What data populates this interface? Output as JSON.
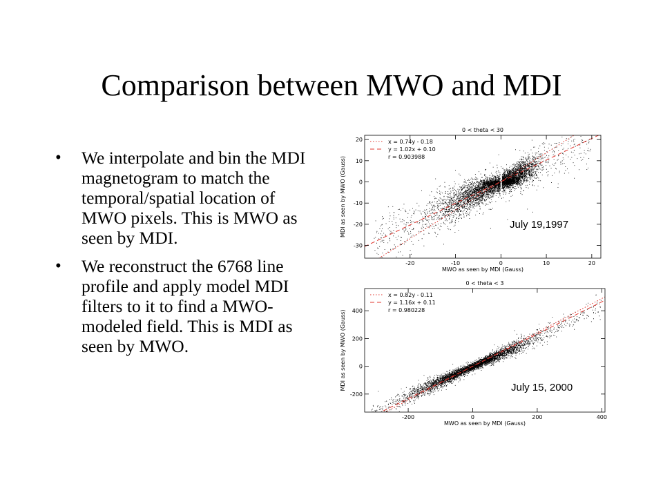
{
  "slide": {
    "title": "Comparison between MWO and MDI",
    "bullets": [
      {
        "bullet": "•",
        "text": "We interpolate and bin the MDI magnetogram to match the temporal/spatial location of MWO pixels. This is MWO as seen by MDI."
      },
      {
        "bullet": "•",
        "text": "We reconstruct the 6768 line profile and apply model MDI filters to it to find a MWO-modeled field. This is MDI as seen by MWO."
      }
    ]
  },
  "chart_data": [
    {
      "type": "scatter",
      "title": "0 < theta < 30",
      "xlabel": "MWO as seen by MDI (Gauss)",
      "ylabel": "MDI as seen by MWO (Gauss)",
      "xlim": [
        -30,
        22
      ],
      "ylim": [
        -36,
        22
      ],
      "xticks": [
        -20,
        -10,
        0,
        10,
        20
      ],
      "yticks": [
        -30,
        -20,
        -10,
        0,
        10,
        20
      ],
      "annotation": "July 19,1997",
      "legend": [
        {
          "label": "x = 0.74y - 0.18",
          "style": "dotted",
          "color": "#e0342c"
        },
        {
          "label": "y = 1.02x + 0.10",
          "style": "dashed",
          "color": "#e0342c"
        },
        {
          "label": "r = 0.903988",
          "style": "none",
          "color": "#000000"
        }
      ],
      "legend_position": "top-left",
      "fit_lines": [
        {
          "style": "dotted",
          "slope_x_on_y": 0.74,
          "intercept": -0.18
        },
        {
          "style": "dashed",
          "slope": 1.02,
          "intercept": 0.1
        }
      ],
      "points_color": "#000000",
      "grid": false
    },
    {
      "type": "scatter",
      "title": "0 < theta < 3",
      "xlabel": "MWO as seen by MDI (Gauss)",
      "ylabel": "MDI as seen by MWO (Gauss)",
      "xlim": [
        -335,
        410
      ],
      "ylim": [
        -330,
        560
      ],
      "xticks": [
        -200,
        0,
        200,
        400
      ],
      "yticks": [
        -200,
        0,
        200,
        400
      ],
      "annotation": "July 15, 2000",
      "legend": [
        {
          "label": "x = 0.82y - 0.11",
          "style": "dotted",
          "color": "#e0342c"
        },
        {
          "label": "y = 1.16x + 0.11",
          "style": "dashed",
          "color": "#e0342c"
        },
        {
          "label": "r = 0.980228",
          "style": "none",
          "color": "#000000"
        }
      ],
      "legend_position": "top-left",
      "fit_lines": [
        {
          "style": "dotted",
          "slope_x_on_y": 0.82,
          "intercept": -0.11
        },
        {
          "style": "dashed",
          "slope": 1.16,
          "intercept": 0.11
        }
      ],
      "points_color": "#000000",
      "grid": false
    }
  ]
}
